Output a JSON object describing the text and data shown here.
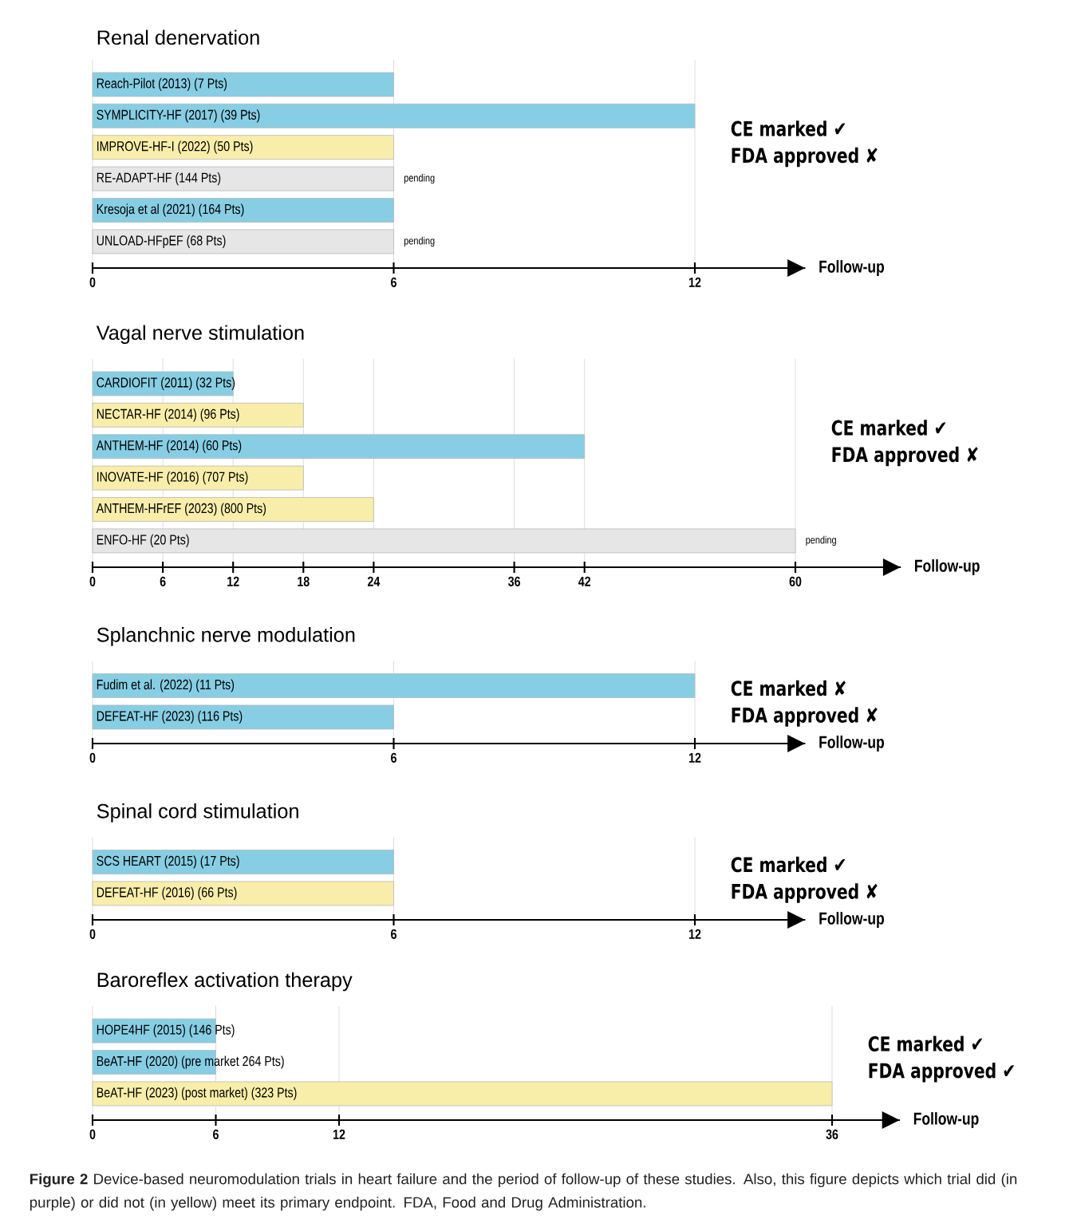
{
  "chart_data": [
    {
      "type": "bar",
      "orientation": "horizontal",
      "title": "Renal denervation",
      "xlabel": "Follow-up",
      "categories": [
        "Reach-Pilot (2013) (7 Pts)",
        "SYMPLICITY-HF (2017) (39 Pts)",
        "IMPROVE-HF-I (2022) (50 Pts)",
        "RE-ADAPT-HF (144 Pts)",
        "Kresoja et al (2021) (164 Pts)",
        "UNLOAD-HFpEF (68 Pts)"
      ],
      "values": [
        6,
        12,
        6,
        6,
        6,
        6
      ],
      "colors": [
        "#87cee4",
        "#87cee4",
        "#f8eeaa",
        "#e6e6e6",
        "#87cee4",
        "#e6e6e6"
      ],
      "xlim": [
        0,
        14.2
      ],
      "xticks": [
        0,
        6,
        12
      ],
      "grid": "x",
      "value_labels": [
        null,
        null,
        null,
        "pending",
        null,
        "pending"
      ],
      "annotations": [
        "CE marked ✔",
        "FDA approved ✘"
      ]
    },
    {
      "type": "bar",
      "orientation": "horizontal",
      "title": "Vagal nerve stimulation",
      "xlabel": "Follow-up",
      "categories": [
        "CARDIOFIT (2011) (32 Pts)",
        "NECTAR-HF (2014) (96 Pts)",
        "ANTHEM-HF (2014) (60 Pts)",
        "INOVATE-HF (2016) (707 Pts)",
        "ANTHEM-HFrEF (2023) (800 Pts)",
        "ENFO-HF (20 Pts)"
      ],
      "values": [
        12,
        18,
        42,
        18,
        24,
        60
      ],
      "colors": [
        "#87cee4",
        "#f8eeaa",
        "#87cee4",
        "#f8eeaa",
        "#f8eeaa",
        "#e6e6e6"
      ],
      "xlim": [
        0,
        69
      ],
      "xticks": [
        0,
        6,
        12,
        18,
        24,
        36,
        42,
        60
      ],
      "grid": "x",
      "value_labels": [
        null,
        null,
        null,
        null,
        null,
        "pending"
      ],
      "annotations": [
        "CE marked ✔",
        "FDA approved ✘"
      ]
    },
    {
      "type": "bar",
      "orientation": "horizontal",
      "title": "Splanchnic nerve modulation",
      "xlabel": "Follow-up",
      "categories": [
        "Fudim et al. (2022) (11 Pts)",
        "DEFEAT-HF (2023) (116 Pts)"
      ],
      "values": [
        12,
        6
      ],
      "colors": [
        "#87cee4",
        "#87cee4"
      ],
      "xlim": [
        0,
        14.2
      ],
      "xticks": [
        0,
        6,
        12
      ],
      "grid": "x",
      "annotations": [
        "CE marked ✘",
        "FDA approved ✘"
      ]
    },
    {
      "type": "bar",
      "orientation": "horizontal",
      "title": "Spinal cord stimulation",
      "xlabel": "Follow-up",
      "categories": [
        "SCS HEART (2015) (17 Pts)",
        "DEFEAT-HF (2016) (66 Pts)"
      ],
      "values": [
        6,
        6
      ],
      "colors": [
        "#87cee4",
        "#f8eeaa"
      ],
      "xlim": [
        0,
        14.2
      ],
      "xticks": [
        0,
        6,
        12
      ],
      "grid": "x",
      "annotations": [
        "CE marked ✔",
        "FDA approved ✘"
      ]
    },
    {
      "type": "bar",
      "orientation": "horizontal",
      "title": "Baroreflex activation therapy",
      "xlabel": "Follow-up",
      "categories": [
        "HOPE4HF (2015) (146 Pts)",
        "BeAT-HF (2020) (pre market 264 Pts)",
        "BeAT-HF (2023) (post market) (323 Pts)"
      ],
      "values": [
        6,
        6,
        36
      ],
      "colors": [
        "#87cee4",
        "#87cee4",
        "#f8eeaa"
      ],
      "xlim": [
        0,
        39.3
      ],
      "xticks": [
        0,
        6,
        12,
        36
      ],
      "grid": "x",
      "annotations": [
        "CE marked ✔",
        "FDA approved ✔",
        "**Figure 2** Device-based neuromodulation trials in heart failure and the period of follow-up of these studies. Also, this figure depicts which trial did (in purple) or did not (in yellow) meet its primary endpoint. FDA, Food and Drug Administration."
      ]
    }
  ]
}
